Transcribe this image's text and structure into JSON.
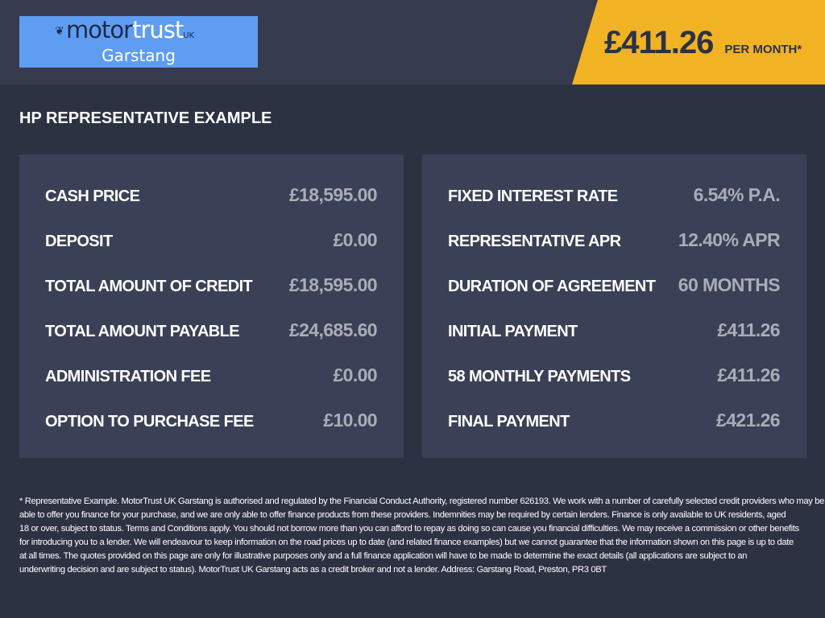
{
  "header": {
    "logo": {
      "brand_dark": "motor",
      "brand_light": "trust",
      "brand_suffix": "UK",
      "location": "Garstang"
    },
    "monthly_price": "£411.26",
    "per_month_label": "PER MONTH*"
  },
  "title": "HP REPRESENTATIVE EXAMPLE",
  "left_panel": [
    {
      "label": "CASH PRICE",
      "value": "£18,595.00"
    },
    {
      "label": "DEPOSIT",
      "value": "£0.00"
    },
    {
      "label": "TOTAL AMOUNT OF CREDIT",
      "value": "£18,595.00"
    },
    {
      "label": "TOTAL AMOUNT PAYABLE",
      "value": "£24,685.60"
    },
    {
      "label": "ADMINISTRATION FEE",
      "value": "£0.00"
    },
    {
      "label": "OPTION TO PURCHASE FEE",
      "value": "£10.00"
    }
  ],
  "right_panel": [
    {
      "label": "FIXED INTEREST RATE",
      "value": "6.54% P.A."
    },
    {
      "label": "REPRESENTATIVE APR",
      "value": "12.40% APR"
    },
    {
      "label": "DURATION OF AGREEMENT",
      "value": "60 MONTHS"
    },
    {
      "label": "INITIAL PAYMENT",
      "value": "£411.26"
    },
    {
      "label": "58 MONTHLY PAYMENTS",
      "value": "£411.26"
    },
    {
      "label": "FINAL PAYMENT",
      "value": "£421.26"
    }
  ],
  "disclaimer_lines": [
    "* Representative Example. MotorTrust UK Garstang is authorised and regulated by the Financial Conduct Authority, registered number 626193. We work with a number of carefully selected credit providers who may be",
    "able to offer you finance for your purchase, and we are only able to offer finance products from these providers. Indemnities may be required by certain lenders. Finance is only available to UK residents, aged",
    "18 or over, subject to status. Terms and Conditions apply. You should not borrow more than you can afford to repay as doing so can cause you financial difficulties. We may receive a commission or other benefits",
    "for introducing you to a lender. We will endeavour to keep information on the road prices up to date (and related finance examples) but we cannot guarantee that the information shown on this page is up to date",
    "at all times. The quotes provided on this page are only for illustrative purposes only and a full finance application will have to be made to determine the exact details (all applications are subject to an",
    "underwriting decision and are subject to status). MotorTrust UK Garstang acts as a credit broker and not a lender. Address: Garstang Road, Preston, PR3 0BT"
  ],
  "colors": {
    "accent": "#f1b224",
    "logo_bg": "#5f9df2",
    "panel": "#3a4055",
    "background": "#2d3243"
  }
}
